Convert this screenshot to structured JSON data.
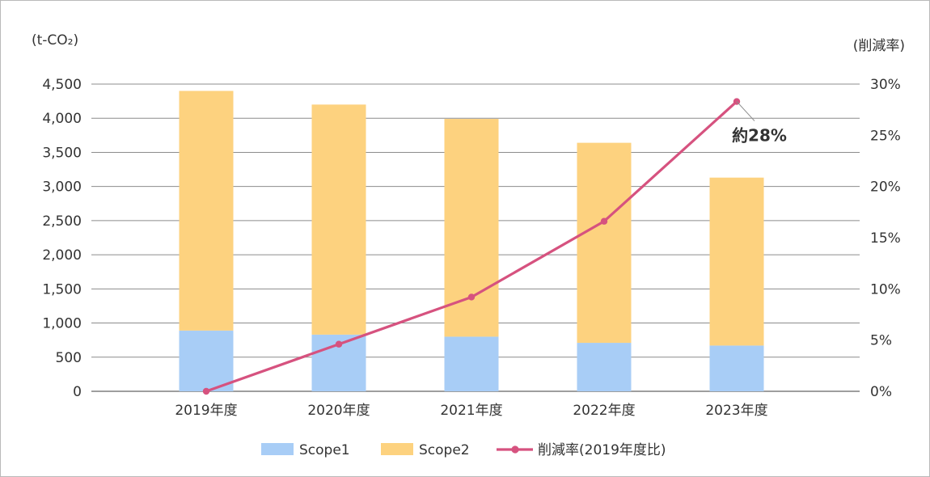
{
  "chart_data": {
    "type": "bar",
    "stacked": true,
    "categories": [
      "2019年度",
      "2020年度",
      "2021年度",
      "2022年度",
      "2023年度"
    ],
    "series": [
      {
        "name": "Scope1",
        "kind": "bar",
        "axis": "left",
        "color": "#a8cdf6",
        "values": [
          890,
          830,
          800,
          710,
          670
        ]
      },
      {
        "name": "Scope2",
        "kind": "bar",
        "axis": "left",
        "color": "#fdd27f",
        "values": [
          3510,
          3370,
          3190,
          2930,
          2460
        ]
      },
      {
        "name": "削減率(2019年度比)",
        "kind": "line",
        "axis": "right",
        "color": "#d6527f",
        "values": [
          0,
          4.6,
          9.2,
          16.6,
          28.3
        ]
      }
    ],
    "y_left": {
      "unit_label": "(t-CO₂)",
      "ylim": [
        0,
        4500
      ],
      "ticks": [
        0,
        500,
        1000,
        1500,
        2000,
        2500,
        3000,
        3500,
        4000,
        4500
      ],
      "tick_labels": [
        "0",
        "500",
        "1,000",
        "1,500",
        "2,000",
        "2,500",
        "3,000",
        "3,500",
        "4,000",
        "4,500"
      ]
    },
    "y_right": {
      "unit_label": "(削減率)",
      "ylim": [
        0,
        30
      ],
      "ticks": [
        0,
        5,
        10,
        15,
        20,
        25,
        30
      ],
      "tick_labels": [
        "0%",
        "5%",
        "10%",
        "15%",
        "20%",
        "25%",
        "30%"
      ]
    },
    "annotation": {
      "text": "約28%",
      "target_category": "2023年度"
    },
    "grid": true,
    "legend_position": "bottom-center"
  }
}
